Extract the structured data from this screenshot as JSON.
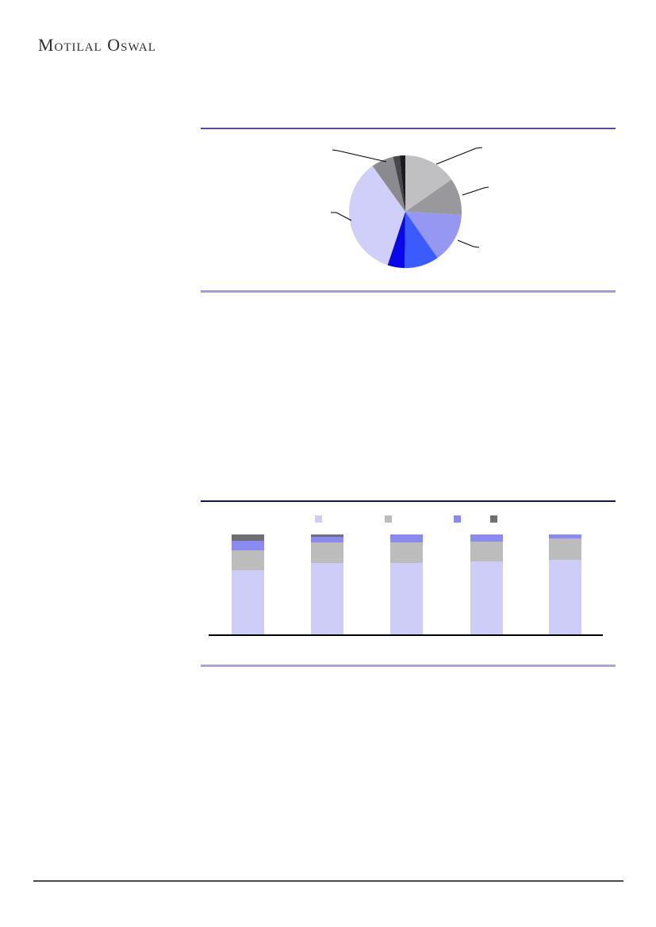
{
  "page": {
    "brand": "Motilal Oswal"
  },
  "colors": {
    "divider_purple": "#5b40c6",
    "divider_light_purple": "#a39bd4",
    "divider_navy": "#16165e",
    "divider_light_purple_2": "#aba3dc",
    "footer_rule": "#4a4a4a",
    "baseline_black": "#000000"
  },
  "chart_data": [
    {
      "type": "pie",
      "title": "",
      "note": "pie with leader-line callouts; no text labels visible in image",
      "slices": [
        {
          "name": "silver-slice",
          "color": "#c0c0c3",
          "percent": 15.3
        },
        {
          "name": "gray-slice",
          "color": "#99999d",
          "percent": 10.6
        },
        {
          "name": "periwinkle-slice",
          "color": "#9597f0",
          "percent": 14.4
        },
        {
          "name": "royal-blue-slice",
          "color": "#3b5bfb",
          "percent": 9.9
        },
        {
          "name": "blue-slice",
          "color": "#0808ea",
          "percent": 4.9
        },
        {
          "name": "lavender-slice",
          "color": "#cfcffa",
          "percent": 35.0
        },
        {
          "name": "gray2-slice",
          "color": "#8b8b8f",
          "percent": 6.4
        },
        {
          "name": "charcoal-slice",
          "color": "#48484c",
          "percent": 1.9
        },
        {
          "name": "black-slice",
          "color": "#1b1b1f",
          "percent": 1.6
        }
      ],
      "start_angle_deg": 0,
      "direction": "clockwise",
      "callout_count": 5
    },
    {
      "type": "bar",
      "subtype": "stacked-100-percent",
      "title": "",
      "note": "five 100%-stacked columns; legend swatches present but labels not visible in image",
      "categories": [
        "",
        "",
        "",
        "",
        ""
      ],
      "series": [
        {
          "name": "lavender",
          "color": "#cdcdf8",
          "values": [
            64.4,
            70.8,
            71.0,
            72.9,
            74.2
          ]
        },
        {
          "name": "gray",
          "color": "#bcbcbc",
          "values": [
            19.8,
            20.8,
            21.1,
            19.8,
            21.1
          ]
        },
        {
          "name": "periwinkle",
          "color": "#8a8af1",
          "values": [
            9.2,
            5.3,
            7.9,
            7.3,
            4.7
          ]
        },
        {
          "name": "dark-gray",
          "color": "#6f6f73",
          "values": [
            6.6,
            3.1,
            0.0,
            0.0,
            0.0
          ]
        }
      ],
      "ylim": [
        0,
        100
      ],
      "grid": false,
      "legend_position": "top"
    }
  ]
}
